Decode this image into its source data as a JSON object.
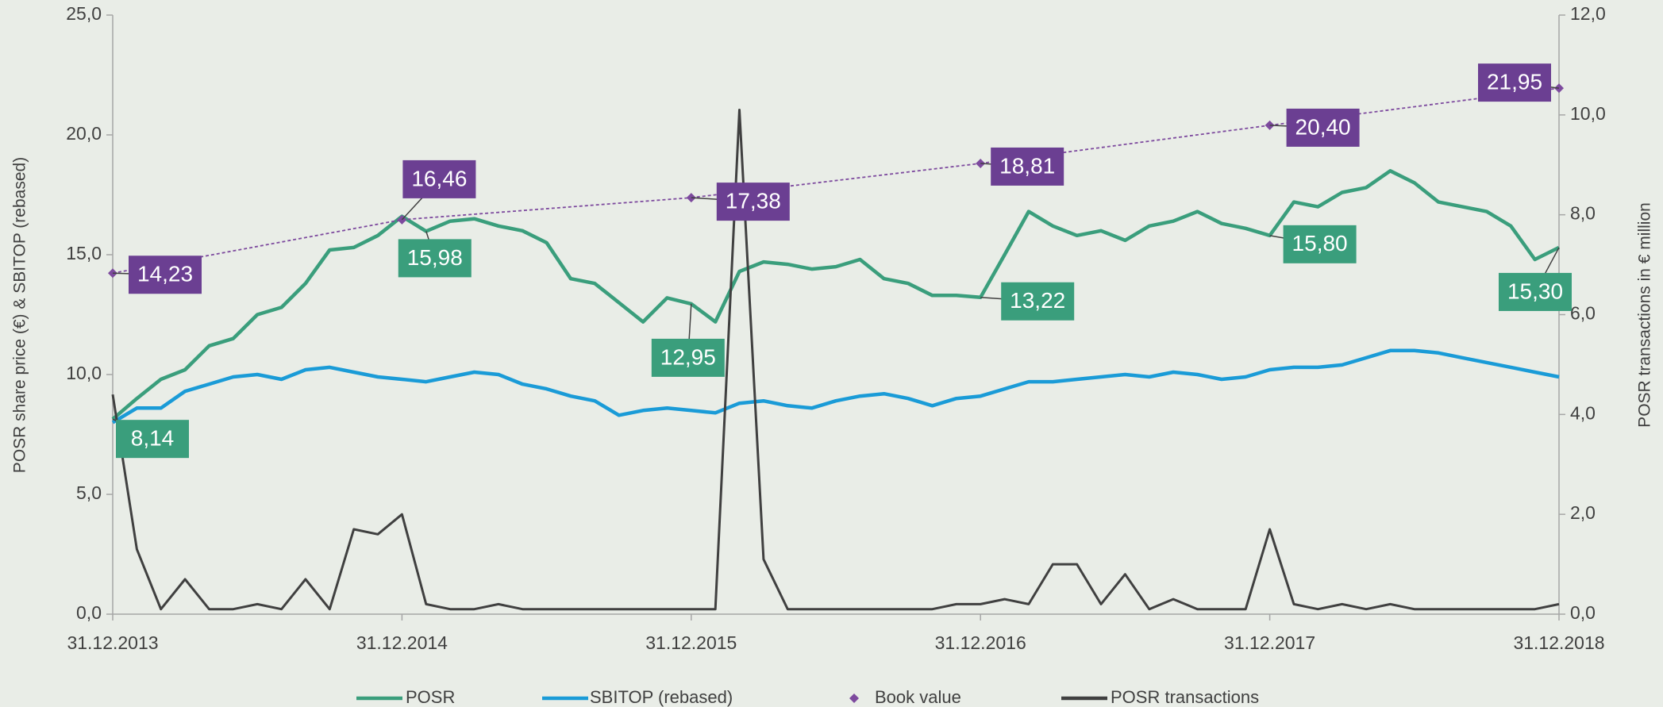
{
  "chart_data": {
    "type": "line",
    "categories": [
      "31.12.2013",
      null,
      null,
      null,
      null,
      null,
      null,
      null,
      null,
      null,
      null,
      null,
      "31.12.2014",
      null,
      null,
      null,
      null,
      null,
      null,
      null,
      null,
      null,
      null,
      null,
      "31.12.2015",
      null,
      null,
      null,
      null,
      null,
      null,
      null,
      null,
      null,
      null,
      null,
      "31.12.2016",
      null,
      null,
      null,
      null,
      null,
      null,
      null,
      null,
      null,
      null,
      null,
      "31.12.2017",
      null,
      null,
      null,
      null,
      null,
      null,
      null,
      null,
      null,
      null,
      null,
      "31.12.2018"
    ],
    "ylabel": "POSR share price (€) & SBITOP (rebased)",
    "y2label": "POSR transactions in € million",
    "ylim": [
      0,
      25
    ],
    "yticks": [
      {
        "value": 0,
        "label": "0,0"
      },
      {
        "value": 5,
        "label": "5,0"
      },
      {
        "value": 10,
        "label": "10,0"
      },
      {
        "value": 15,
        "label": "15,0"
      },
      {
        "value": 20,
        "label": "20,0"
      },
      {
        "value": 25,
        "label": "25,0"
      }
    ],
    "y2lim": [
      0,
      12
    ],
    "y2ticks": [
      {
        "value": 0,
        "label": "0,0"
      },
      {
        "value": 2,
        "label": "2,0"
      },
      {
        "value": 4,
        "label": "4,0"
      },
      {
        "value": 6,
        "label": "6,0"
      },
      {
        "value": 8,
        "label": "8,0"
      },
      {
        "value": 10,
        "label": "10,0"
      },
      {
        "value": 12,
        "label": "12,0"
      }
    ],
    "legend": "bottom",
    "series": [
      {
        "name": "POSR",
        "color": "#3a9e7c",
        "style": "line",
        "values": [
          8.14,
          9.0,
          9.8,
          10.2,
          11.2,
          11.5,
          12.5,
          12.8,
          13.8,
          15.2,
          15.3,
          15.8,
          16.6,
          15.98,
          16.4,
          16.5,
          16.2,
          16.0,
          15.5,
          14.0,
          13.8,
          13.0,
          12.2,
          13.2,
          12.95,
          12.2,
          14.3,
          14.7,
          14.6,
          14.4,
          14.5,
          14.8,
          14.0,
          13.8,
          13.3,
          13.3,
          13.22,
          15.0,
          16.8,
          16.2,
          15.8,
          16.0,
          15.6,
          16.2,
          16.4,
          16.8,
          16.3,
          16.1,
          15.8,
          17.2,
          17.0,
          17.6,
          17.8,
          18.5,
          18.0,
          17.2,
          17.0,
          16.8,
          16.2,
          14.8,
          15.3
        ],
        "value_labels": [
          "8,14",
          null,
          null,
          null,
          null,
          null,
          null,
          null,
          null,
          null,
          null,
          null,
          null,
          "15,98",
          null,
          null,
          null,
          null,
          null,
          null,
          null,
          null,
          null,
          null,
          "12,95",
          null,
          null,
          null,
          null,
          null,
          null,
          null,
          null,
          null,
          null,
          null,
          "13,22",
          null,
          null,
          null,
          null,
          null,
          null,
          null,
          null,
          null,
          null,
          null,
          "15,80",
          null,
          null,
          null,
          null,
          null,
          null,
          null,
          null,
          null,
          null,
          null,
          "15,30"
        ]
      },
      {
        "name": "SBITOP (rebased)",
        "color": "#1a9bd7",
        "style": "line",
        "values": [
          8.0,
          8.6,
          8.6,
          9.3,
          9.6,
          9.9,
          10.0,
          9.8,
          10.2,
          10.3,
          10.1,
          9.9,
          9.8,
          9.7,
          9.9,
          10.1,
          10.0,
          9.6,
          9.4,
          9.1,
          8.9,
          8.3,
          8.5,
          8.6,
          8.5,
          8.4,
          8.8,
          8.9,
          8.7,
          8.6,
          8.9,
          9.1,
          9.2,
          9.0,
          8.7,
          9.0,
          9.1,
          9.4,
          9.7,
          9.7,
          9.8,
          9.9,
          10.0,
          9.9,
          10.1,
          10.0,
          9.8,
          9.9,
          10.2,
          10.3,
          10.3,
          10.4,
          10.7,
          11.0,
          11.0,
          10.9,
          10.7,
          10.5,
          10.3,
          10.1,
          9.9
        ]
      },
      {
        "name": "Book value",
        "color": "#7d4a9e",
        "style": "marker",
        "values": [
          14.23,
          null,
          null,
          null,
          null,
          null,
          null,
          null,
          null,
          null,
          null,
          null,
          16.46,
          null,
          null,
          null,
          null,
          null,
          null,
          null,
          null,
          null,
          null,
          null,
          17.38,
          null,
          null,
          null,
          null,
          null,
          null,
          null,
          null,
          null,
          null,
          null,
          18.81,
          null,
          null,
          null,
          null,
          null,
          null,
          null,
          null,
          null,
          null,
          null,
          20.4,
          null,
          null,
          null,
          null,
          null,
          null,
          null,
          null,
          null,
          null,
          null,
          21.95
        ],
        "value_labels": [
          "14,23",
          null,
          null,
          null,
          null,
          null,
          null,
          null,
          null,
          null,
          null,
          null,
          "16,46",
          null,
          null,
          null,
          null,
          null,
          null,
          null,
          null,
          null,
          null,
          null,
          "17,38",
          null,
          null,
          null,
          null,
          null,
          null,
          null,
          null,
          null,
          null,
          null,
          "18,81",
          null,
          null,
          null,
          null,
          null,
          null,
          null,
          null,
          null,
          null,
          null,
          "20,40",
          null,
          null,
          null,
          null,
          null,
          null,
          null,
          null,
          null,
          null,
          null,
          "21,95"
        ]
      },
      {
        "name": "POSR transactions",
        "color": "#404040",
        "style": "line",
        "axis": "y2",
        "values": [
          4.4,
          1.3,
          0.1,
          0.7,
          0.1,
          0.1,
          0.2,
          0.1,
          0.7,
          0.1,
          1.7,
          1.6,
          2.0,
          0.2,
          0.1,
          0.1,
          0.2,
          0.1,
          0.1,
          0.1,
          0.1,
          0.1,
          0.1,
          0.1,
          0.1,
          0.1,
          10.1,
          1.1,
          0.1,
          0.1,
          0.1,
          0.1,
          0.1,
          0.1,
          0.1,
          0.2,
          0.2,
          0.3,
          0.2,
          1.0,
          1.0,
          0.2,
          0.8,
          0.1,
          0.3,
          0.1,
          0.1,
          0.1,
          1.7,
          0.2,
          0.1,
          0.2,
          0.1,
          0.2,
          0.1,
          0.1,
          0.1,
          0.1,
          0.1,
          0.1,
          0.2
        ]
      }
    ]
  }
}
